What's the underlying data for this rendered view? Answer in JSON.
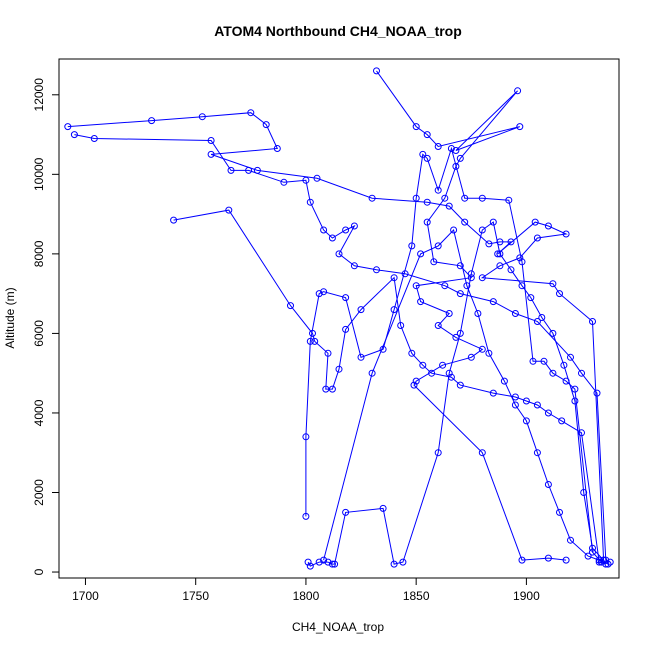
{
  "chart_data": {
    "type": "line",
    "title": "ATOM4 Northbound CH4_NOAA_trop",
    "xlabel": "CH4_NOAA_trop",
    "ylabel": "Altitude (m)",
    "xlim": [
      1688,
      1942
    ],
    "ylim": [
      -150,
      12900
    ],
    "x_ticks": [
      1700,
      1750,
      1800,
      1850,
      1900
    ],
    "y_ticks": [
      0,
      2000,
      4000,
      6000,
      8000,
      10000,
      12000
    ],
    "colors": {
      "series": "#0000ff",
      "axis": "#000000",
      "background": "#ffffff"
    },
    "grid": false,
    "legend": "none",
    "series_style": "lines with open circle markers",
    "series": [
      {
        "points": [
          [
            1832,
            12600
          ],
          [
            1850,
            11200
          ],
          [
            1855,
            11000
          ],
          [
            1860,
            10700
          ],
          [
            1897,
            11200
          ],
          [
            1868,
            10600
          ],
          [
            1896,
            12100
          ],
          [
            1870,
            10400
          ],
          [
            1868,
            10200
          ],
          [
            1863,
            9400
          ],
          [
            1855,
            8800
          ],
          [
            1858,
            7800
          ],
          [
            1870,
            7700
          ],
          [
            1875,
            7400
          ],
          [
            1850,
            7200
          ],
          [
            1852,
            6800
          ],
          [
            1865,
            6500
          ],
          [
            1860,
            6200
          ],
          [
            1868,
            5900
          ],
          [
            1880,
            5600
          ],
          [
            1875,
            5400
          ],
          [
            1862,
            5200
          ],
          [
            1850,
            4800
          ],
          [
            1849,
            4700
          ],
          [
            1880,
            3000
          ],
          [
            1898,
            300
          ],
          [
            1910,
            350
          ],
          [
            1918,
            300
          ]
        ]
      },
      {
        "points": [
          [
            1692,
            11200
          ],
          [
            1730,
            11350
          ],
          [
            1753,
            11450
          ],
          [
            1775,
            11550
          ],
          [
            1782,
            11250
          ],
          [
            1787,
            10650
          ],
          [
            1757,
            10500
          ],
          [
            1778,
            10100
          ],
          [
            1805,
            9900
          ],
          [
            1830,
            9400
          ],
          [
            1855,
            9300
          ],
          [
            1865,
            9200
          ],
          [
            1872,
            8800
          ],
          [
            1883,
            8250
          ],
          [
            1888,
            8300
          ],
          [
            1893,
            8300
          ],
          [
            1887,
            8000
          ],
          [
            1904,
            8800
          ],
          [
            1910,
            8700
          ],
          [
            1918,
            8500
          ],
          [
            1905,
            8400
          ],
          [
            1897,
            7900
          ],
          [
            1888,
            7700
          ],
          [
            1880,
            7400
          ],
          [
            1912,
            7250
          ],
          [
            1915,
            7000
          ],
          [
            1930,
            6300
          ],
          [
            1935,
            300
          ]
        ]
      },
      {
        "points": [
          [
            1695,
            11000
          ],
          [
            1704,
            10900
          ],
          [
            1757,
            10850
          ],
          [
            1766,
            10100
          ],
          [
            1774,
            10100
          ],
          [
            1790,
            9800
          ],
          [
            1800,
            9850
          ],
          [
            1802,
            9300
          ],
          [
            1808,
            8600
          ],
          [
            1812,
            8400
          ],
          [
            1818,
            8600
          ],
          [
            1822,
            8700
          ],
          [
            1815,
            8000
          ],
          [
            1822,
            7700
          ],
          [
            1832,
            7600
          ],
          [
            1845,
            7500
          ],
          [
            1863,
            7200
          ],
          [
            1870,
            7000
          ],
          [
            1885,
            6800
          ],
          [
            1895,
            6500
          ],
          [
            1905,
            6300
          ],
          [
            1920,
            5400
          ],
          [
            1925,
            5000
          ],
          [
            1932,
            4500
          ],
          [
            1936,
            300
          ],
          [
            1938,
            250
          ]
        ]
      },
      {
        "points": [
          [
            1740,
            8850
          ],
          [
            1765,
            9100
          ],
          [
            1793,
            6700
          ],
          [
            1803,
            6000
          ],
          [
            1804,
            5800
          ],
          [
            1810,
            5500
          ],
          [
            1809,
            4600
          ],
          [
            1812,
            4600
          ],
          [
            1815,
            5100
          ],
          [
            1818,
            6100
          ],
          [
            1825,
            6600
          ],
          [
            1840,
            7400
          ],
          [
            1843,
            6200
          ],
          [
            1848,
            5500
          ],
          [
            1853,
            5200
          ],
          [
            1857,
            5000
          ],
          [
            1866,
            4900
          ],
          [
            1870,
            4700
          ],
          [
            1885,
            4500
          ],
          [
            1895,
            4400
          ],
          [
            1900,
            4300
          ],
          [
            1905,
            4200
          ],
          [
            1910,
            4000
          ],
          [
            1916,
            3800
          ],
          [
            1925,
            3500
          ],
          [
            1933,
            250
          ],
          [
            1936,
            200
          ]
        ]
      },
      {
        "points": [
          [
            1800,
            1400
          ],
          [
            1800,
            3400
          ],
          [
            1802,
            5800
          ],
          [
            1806,
            7000
          ],
          [
            1808,
            7050
          ],
          [
            1818,
            6900
          ],
          [
            1825,
            5400
          ],
          [
            1835,
            5600
          ],
          [
            1840,
            6600
          ],
          [
            1848,
            8200
          ],
          [
            1850,
            9400
          ],
          [
            1853,
            10500
          ],
          [
            1855,
            10400
          ],
          [
            1860,
            9600
          ],
          [
            1866,
            10650
          ],
          [
            1872,
            9400
          ],
          [
            1880,
            9400
          ],
          [
            1892,
            9350
          ],
          [
            1898,
            7800
          ],
          [
            1903,
            5300
          ],
          [
            1908,
            5300
          ],
          [
            1912,
            5000
          ],
          [
            1918,
            4800
          ],
          [
            1922,
            4600
          ],
          [
            1930,
            500
          ],
          [
            1934,
            250
          ]
        ]
      },
      {
        "points": [
          [
            1801,
            250
          ],
          [
            1802,
            150
          ],
          [
            1806,
            250
          ],
          [
            1810,
            250
          ],
          [
            1812,
            200
          ],
          [
            1813,
            200
          ],
          [
            1818,
            1500
          ],
          [
            1835,
            1600
          ],
          [
            1840,
            200
          ],
          [
            1844,
            250
          ],
          [
            1860,
            3000
          ],
          [
            1865,
            5000
          ],
          [
            1870,
            6000
          ],
          [
            1875,
            7500
          ],
          [
            1880,
            8600
          ],
          [
            1885,
            8800
          ],
          [
            1888,
            8000
          ],
          [
            1893,
            7600
          ],
          [
            1898,
            7200
          ],
          [
            1902,
            6900
          ],
          [
            1907,
            6400
          ],
          [
            1912,
            6000
          ],
          [
            1917,
            5200
          ],
          [
            1922,
            4300
          ],
          [
            1926,
            2000
          ],
          [
            1930,
            600
          ],
          [
            1935,
            300
          ]
        ]
      },
      {
        "points": [
          [
            1808,
            300
          ],
          [
            1830,
            5000
          ],
          [
            1852,
            8000
          ],
          [
            1860,
            8200
          ],
          [
            1867,
            8600
          ],
          [
            1873,
            7200
          ],
          [
            1878,
            6500
          ],
          [
            1883,
            5500
          ],
          [
            1890,
            4800
          ],
          [
            1895,
            4200
          ],
          [
            1900,
            3800
          ],
          [
            1905,
            3000
          ],
          [
            1910,
            2200
          ],
          [
            1915,
            1500
          ],
          [
            1920,
            800
          ],
          [
            1928,
            400
          ],
          [
            1933,
            300
          ],
          [
            1937,
            200
          ]
        ]
      }
    ]
  }
}
